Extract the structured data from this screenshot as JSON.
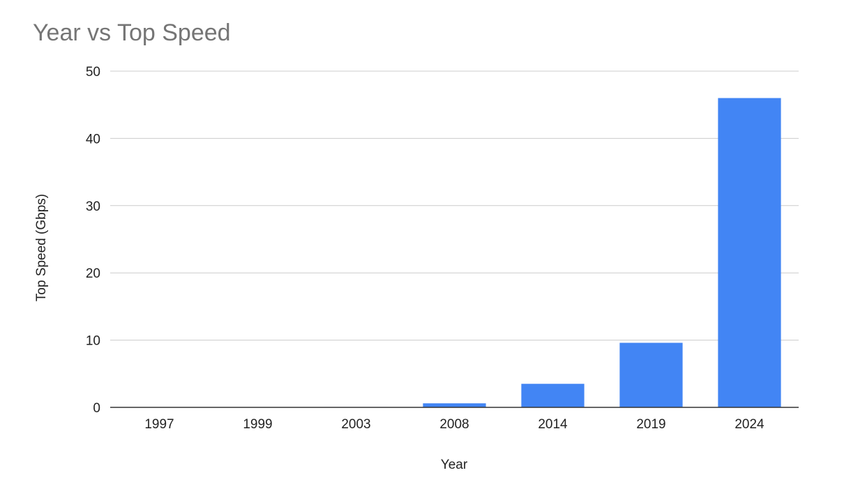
{
  "chart_data": {
    "type": "bar",
    "title": "Year vs Top Speed",
    "xlabel": "Year",
    "ylabel": "Top Speed (Gbps)",
    "categories": [
      "1997",
      "1999",
      "2003",
      "2008",
      "2014",
      "2019",
      "2024"
    ],
    "values": [
      0.002,
      0.011,
      0.054,
      0.6,
      3.5,
      9.6,
      46
    ],
    "ylim": [
      0,
      50
    ],
    "yticks": [
      "0",
      "10",
      "20",
      "30",
      "40",
      "50"
    ],
    "grid": true,
    "legend": "none",
    "bar_color": "#4285f4"
  }
}
